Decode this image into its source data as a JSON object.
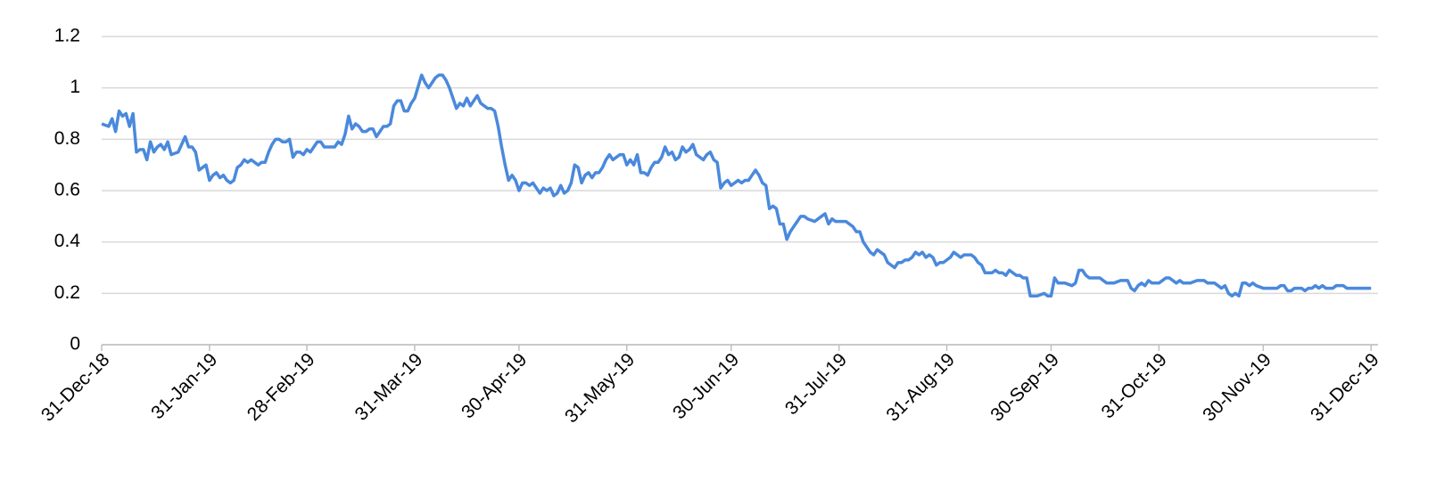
{
  "chart_data": {
    "type": "line",
    "x": [
      "31-Dec-18",
      "02-Jan-19",
      "03-Jan-19",
      "04-Jan-19",
      "05-Jan-19",
      "06-Jan-19",
      "07-Jan-19",
      "08-Jan-19",
      "09-Jan-19",
      "10-Jan-19",
      "11-Jan-19",
      "12-Jan-19",
      "13-Jan-19",
      "14-Jan-19",
      "15-Jan-19",
      "16-Jan-19",
      "17-Jan-19",
      "18-Jan-19",
      "19-Jan-19",
      "20-Jan-19",
      "22-Jan-19",
      "24-Jan-19",
      "25-Jan-19",
      "26-Jan-19",
      "27-Jan-19",
      "28-Jan-19",
      "29-Jan-19",
      "30-Jan-19",
      "31-Jan-19",
      "01-Feb-19",
      "02-Feb-19",
      "03-Feb-19",
      "04-Feb-19",
      "05-Feb-19",
      "06-Feb-19",
      "07-Feb-19",
      "08-Feb-19",
      "09-Feb-19",
      "10-Feb-19",
      "11-Feb-19",
      "12-Feb-19",
      "13-Feb-19",
      "14-Feb-19",
      "15-Feb-19",
      "16-Feb-19",
      "17-Feb-19",
      "18-Feb-19",
      "19-Feb-19",
      "20-Feb-19",
      "21-Feb-19",
      "22-Feb-19",
      "23-Feb-19",
      "24-Feb-19",
      "25-Feb-19",
      "26-Feb-19",
      "27-Feb-19",
      "28-Feb-19",
      "01-Mar-19",
      "02-Mar-19",
      "03-Mar-19",
      "04-Mar-19",
      "05-Mar-19",
      "06-Mar-19",
      "07-Mar-19",
      "08-Mar-19",
      "09-Mar-19",
      "10-Mar-19",
      "11-Mar-19",
      "12-Mar-19",
      "13-Mar-19",
      "14-Mar-19",
      "15-Mar-19",
      "16-Mar-19",
      "17-Mar-19",
      "18-Mar-19",
      "19-Mar-19",
      "20-Mar-19",
      "21-Mar-19",
      "22-Mar-19",
      "23-Mar-19",
      "24-Mar-19",
      "25-Mar-19",
      "26-Mar-19",
      "27-Mar-19",
      "28-Mar-19",
      "29-Mar-19",
      "30-Mar-19",
      "31-Mar-19",
      "02-Apr-19",
      "03-Apr-19",
      "04-Apr-19",
      "05-Apr-19",
      "06-Apr-19",
      "07-Apr-19",
      "08-Apr-19",
      "09-Apr-19",
      "10-Apr-19",
      "11-Apr-19",
      "12-Apr-19",
      "13-Apr-19",
      "14-Apr-19",
      "15-Apr-19",
      "16-Apr-19",
      "17-Apr-19",
      "18-Apr-19",
      "19-Apr-19",
      "20-Apr-19",
      "21-Apr-19",
      "22-Apr-19",
      "23-Apr-19",
      "24-Apr-19",
      "25-Apr-19",
      "26-Apr-19",
      "27-Apr-19",
      "28-Apr-19",
      "29-Apr-19",
      "30-Apr-19",
      "01-May-19",
      "02-May-19",
      "03-May-19",
      "04-May-19",
      "05-May-19",
      "06-May-19",
      "07-May-19",
      "08-May-19",
      "09-May-19",
      "10-May-19",
      "11-May-19",
      "12-May-19",
      "13-May-19",
      "14-May-19",
      "15-May-19",
      "16-May-19",
      "17-May-19",
      "18-May-19",
      "19-May-19",
      "20-May-19",
      "21-May-19",
      "22-May-19",
      "23-May-19",
      "24-May-19",
      "25-May-19",
      "26-May-19",
      "27-May-19",
      "28-May-19",
      "29-May-19",
      "30-May-19",
      "31-May-19",
      "01-Jun-19",
      "02-Jun-19",
      "03-Jun-19",
      "04-Jun-19",
      "05-Jun-19",
      "06-Jun-19",
      "07-Jun-19",
      "08-Jun-19",
      "09-Jun-19",
      "10-Jun-19",
      "11-Jun-19",
      "12-Jun-19",
      "13-Jun-19",
      "14-Jun-19",
      "15-Jun-19",
      "16-Jun-19",
      "17-Jun-19",
      "18-Jun-19",
      "19-Jun-19",
      "20-Jun-19",
      "21-Jun-19",
      "22-Jun-19",
      "23-Jun-19",
      "24-Jun-19",
      "25-Jun-19",
      "26-Jun-19",
      "27-Jun-19",
      "28-Jun-19",
      "29-Jun-19",
      "30-Jun-19",
      "01-Jul-19",
      "02-Jul-19",
      "03-Jul-19",
      "04-Jul-19",
      "05-Jul-19",
      "06-Jul-19",
      "07-Jul-19",
      "08-Jul-19",
      "09-Jul-19",
      "10-Jul-19",
      "11-Jul-19",
      "12-Jul-19",
      "13-Jul-19",
      "14-Jul-19",
      "15-Jul-19",
      "16-Jul-19",
      "17-Jul-19",
      "19-Jul-19",
      "20-Jul-19",
      "21-Jul-19",
      "22-Jul-19",
      "24-Jul-19",
      "25-Jul-19",
      "26-Jul-19",
      "27-Jul-19",
      "28-Jul-19",
      "29-Jul-19",
      "30-Jul-19",
      "01-Aug-19",
      "02-Aug-19",
      "03-Aug-19",
      "04-Aug-19",
      "05-Aug-19",
      "06-Aug-19",
      "07-Aug-19",
      "08-Aug-19",
      "09-Aug-19",
      "10-Aug-19",
      "11-Aug-19",
      "12-Aug-19",
      "13-Aug-19",
      "14-Aug-19",
      "15-Aug-19",
      "16-Aug-19",
      "17-Aug-19",
      "18-Aug-19",
      "19-Aug-19",
      "20-Aug-19",
      "21-Aug-19",
      "22-Aug-19",
      "23-Aug-19",
      "24-Aug-19",
      "25-Aug-19",
      "26-Aug-19",
      "27-Aug-19",
      "28-Aug-19",
      "29-Aug-19",
      "30-Aug-19",
      "31-Aug-19",
      "01-Sep-19",
      "02-Sep-19",
      "03-Sep-19",
      "04-Sep-19",
      "05-Sep-19",
      "06-Sep-19",
      "07-Sep-19",
      "08-Sep-19",
      "09-Sep-19",
      "10-Sep-19",
      "11-Sep-19",
      "12-Sep-19",
      "13-Sep-19",
      "14-Sep-19",
      "15-Sep-19",
      "16-Sep-19",
      "17-Sep-19",
      "18-Sep-19",
      "19-Sep-19",
      "20-Sep-19",
      "21-Sep-19",
      "22-Sep-19",
      "23-Sep-19",
      "24-Sep-19",
      "26-Sep-19",
      "28-Sep-19",
      "29-Sep-19",
      "30-Sep-19",
      "01-Oct-19",
      "02-Oct-19",
      "04-Oct-19",
      "06-Oct-19",
      "07-Oct-19",
      "08-Oct-19",
      "09-Oct-19",
      "10-Oct-19",
      "11-Oct-19",
      "13-Oct-19",
      "14-Oct-19",
      "15-Oct-19",
      "16-Oct-19",
      "18-Oct-19",
      "20-Oct-19",
      "22-Oct-19",
      "23-Oct-19",
      "24-Oct-19",
      "25-Oct-19",
      "26-Oct-19",
      "27-Oct-19",
      "28-Oct-19",
      "29-Oct-19",
      "31-Oct-19",
      "01-Nov-19",
      "02-Nov-19",
      "03-Nov-19",
      "04-Nov-19",
      "05-Nov-19",
      "06-Nov-19",
      "07-Nov-19",
      "09-Nov-19",
      "11-Nov-19",
      "13-Nov-19",
      "14-Nov-19",
      "16-Nov-19",
      "17-Nov-19",
      "18-Nov-19",
      "19-Nov-19",
      "20-Nov-19",
      "21-Nov-19",
      "22-Nov-19",
      "23-Nov-19",
      "24-Nov-19",
      "25-Nov-19",
      "26-Nov-19",
      "27-Nov-19",
      "28-Nov-19",
      "30-Nov-19",
      "02-Dec-19",
      "04-Dec-19",
      "05-Dec-19",
      "06-Dec-19",
      "07-Dec-19",
      "08-Dec-19",
      "09-Dec-19",
      "11-Dec-19",
      "12-Dec-19",
      "13-Dec-19",
      "14-Dec-19",
      "15-Dec-19",
      "16-Dec-19",
      "17-Dec-19",
      "18-Dec-19",
      "20-Dec-19",
      "21-Dec-19",
      "23-Dec-19",
      "24-Dec-19",
      "26-Dec-19",
      "28-Dec-19",
      "31-Dec-19"
    ],
    "series": [
      {
        "color": "#4a89dc",
        "values": [
          0.86,
          0.85,
          0.88,
          0.83,
          0.91,
          0.89,
          0.9,
          0.85,
          0.9,
          0.75,
          0.76,
          0.76,
          0.72,
          0.79,
          0.75,
          0.77,
          0.78,
          0.76,
          0.79,
          0.74,
          0.75,
          0.81,
          0.77,
          0.77,
          0.75,
          0.68,
          0.69,
          0.7,
          0.64,
          0.66,
          0.67,
          0.65,
          0.66,
          0.64,
          0.63,
          0.64,
          0.69,
          0.7,
          0.72,
          0.71,
          0.72,
          0.71,
          0.7,
          0.71,
          0.71,
          0.75,
          0.78,
          0.8,
          0.8,
          0.79,
          0.79,
          0.8,
          0.73,
          0.75,
          0.75,
          0.74,
          0.76,
          0.75,
          0.77,
          0.79,
          0.79,
          0.77,
          0.77,
          0.77,
          0.77,
          0.79,
          0.78,
          0.82,
          0.89,
          0.84,
          0.86,
          0.85,
          0.83,
          0.83,
          0.84,
          0.84,
          0.81,
          0.83,
          0.85,
          0.85,
          0.86,
          0.93,
          0.95,
          0.95,
          0.91,
          0.91,
          0.94,
          0.96,
          1.05,
          1.02,
          1.0,
          1.02,
          1.04,
          1.05,
          1.05,
          1.03,
          1.0,
          0.96,
          0.92,
          0.94,
          0.93,
          0.96,
          0.93,
          0.95,
          0.97,
          0.94,
          0.93,
          0.92,
          0.92,
          0.91,
          0.85,
          0.77,
          0.7,
          0.64,
          0.66,
          0.64,
          0.6,
          0.63,
          0.63,
          0.62,
          0.63,
          0.61,
          0.59,
          0.61,
          0.6,
          0.61,
          0.58,
          0.59,
          0.62,
          0.59,
          0.6,
          0.63,
          0.7,
          0.69,
          0.63,
          0.66,
          0.67,
          0.65,
          0.67,
          0.67,
          0.69,
          0.72,
          0.74,
          0.72,
          0.73,
          0.74,
          0.74,
          0.7,
          0.72,
          0.7,
          0.74,
          0.67,
          0.67,
          0.66,
          0.69,
          0.71,
          0.71,
          0.73,
          0.77,
          0.74,
          0.75,
          0.72,
          0.73,
          0.77,
          0.75,
          0.76,
          0.78,
          0.74,
          0.73,
          0.72,
          0.74,
          0.75,
          0.72,
          0.71,
          0.61,
          0.63,
          0.64,
          0.62,
          0.63,
          0.64,
          0.63,
          0.64,
          0.64,
          0.66,
          0.68,
          0.66,
          0.63,
          0.62,
          0.53,
          0.54,
          0.53,
          0.47,
          0.47,
          0.41,
          0.44,
          0.48,
          0.5,
          0.5,
          0.49,
          0.48,
          0.49,
          0.5,
          0.51,
          0.47,
          0.49,
          0.48,
          0.48,
          0.48,
          0.47,
          0.46,
          0.44,
          0.44,
          0.4,
          0.38,
          0.36,
          0.35,
          0.37,
          0.36,
          0.35,
          0.32,
          0.31,
          0.3,
          0.32,
          0.32,
          0.33,
          0.33,
          0.34,
          0.36,
          0.35,
          0.36,
          0.34,
          0.35,
          0.34,
          0.31,
          0.32,
          0.32,
          0.33,
          0.34,
          0.36,
          0.35,
          0.34,
          0.35,
          0.35,
          0.35,
          0.34,
          0.32,
          0.31,
          0.28,
          0.28,
          0.28,
          0.29,
          0.28,
          0.28,
          0.27,
          0.29,
          0.28,
          0.27,
          0.27,
          0.26,
          0.26,
          0.19,
          0.19,
          0.2,
          0.19,
          0.19,
          0.26,
          0.24,
          0.24,
          0.23,
          0.24,
          0.29,
          0.29,
          0.27,
          0.26,
          0.26,
          0.26,
          0.25,
          0.24,
          0.24,
          0.25,
          0.25,
          0.22,
          0.21,
          0.23,
          0.24,
          0.23,
          0.25,
          0.24,
          0.24,
          0.25,
          0.26,
          0.26,
          0.25,
          0.24,
          0.25,
          0.24,
          0.24,
          0.25,
          0.25,
          0.24,
          0.24,
          0.23,
          0.22,
          0.23,
          0.2,
          0.19,
          0.2,
          0.19,
          0.24,
          0.24,
          0.23,
          0.24,
          0.23,
          0.22,
          0.22,
          0.22,
          0.23,
          0.23,
          0.21,
          0.21,
          0.22,
          0.22,
          0.21,
          0.22,
          0.22,
          0.23,
          0.22,
          0.23,
          0.22,
          0.22,
          0.23,
          0.23,
          0.22,
          0.22,
          0.22,
          0.22
        ]
      }
    ],
    "xlim": [
      "31-Dec-18",
      "02-Jan-20"
    ],
    "xticks": [
      "31-Dec-18",
      "31-Jan-19",
      "28-Feb-19",
      "31-Mar-19",
      "30-Apr-19",
      "31-May-19",
      "30-Jun-19",
      "31-Jul-19",
      "31-Aug-19",
      "30-Sep-19",
      "31-Oct-19",
      "30-Nov-19",
      "31-Dec-19"
    ],
    "ylim": [
      0,
      1.2
    ],
    "yticks": [
      0,
      0.2,
      0.4,
      0.6,
      0.8,
      1,
      1.2
    ],
    "grid": true
  }
}
